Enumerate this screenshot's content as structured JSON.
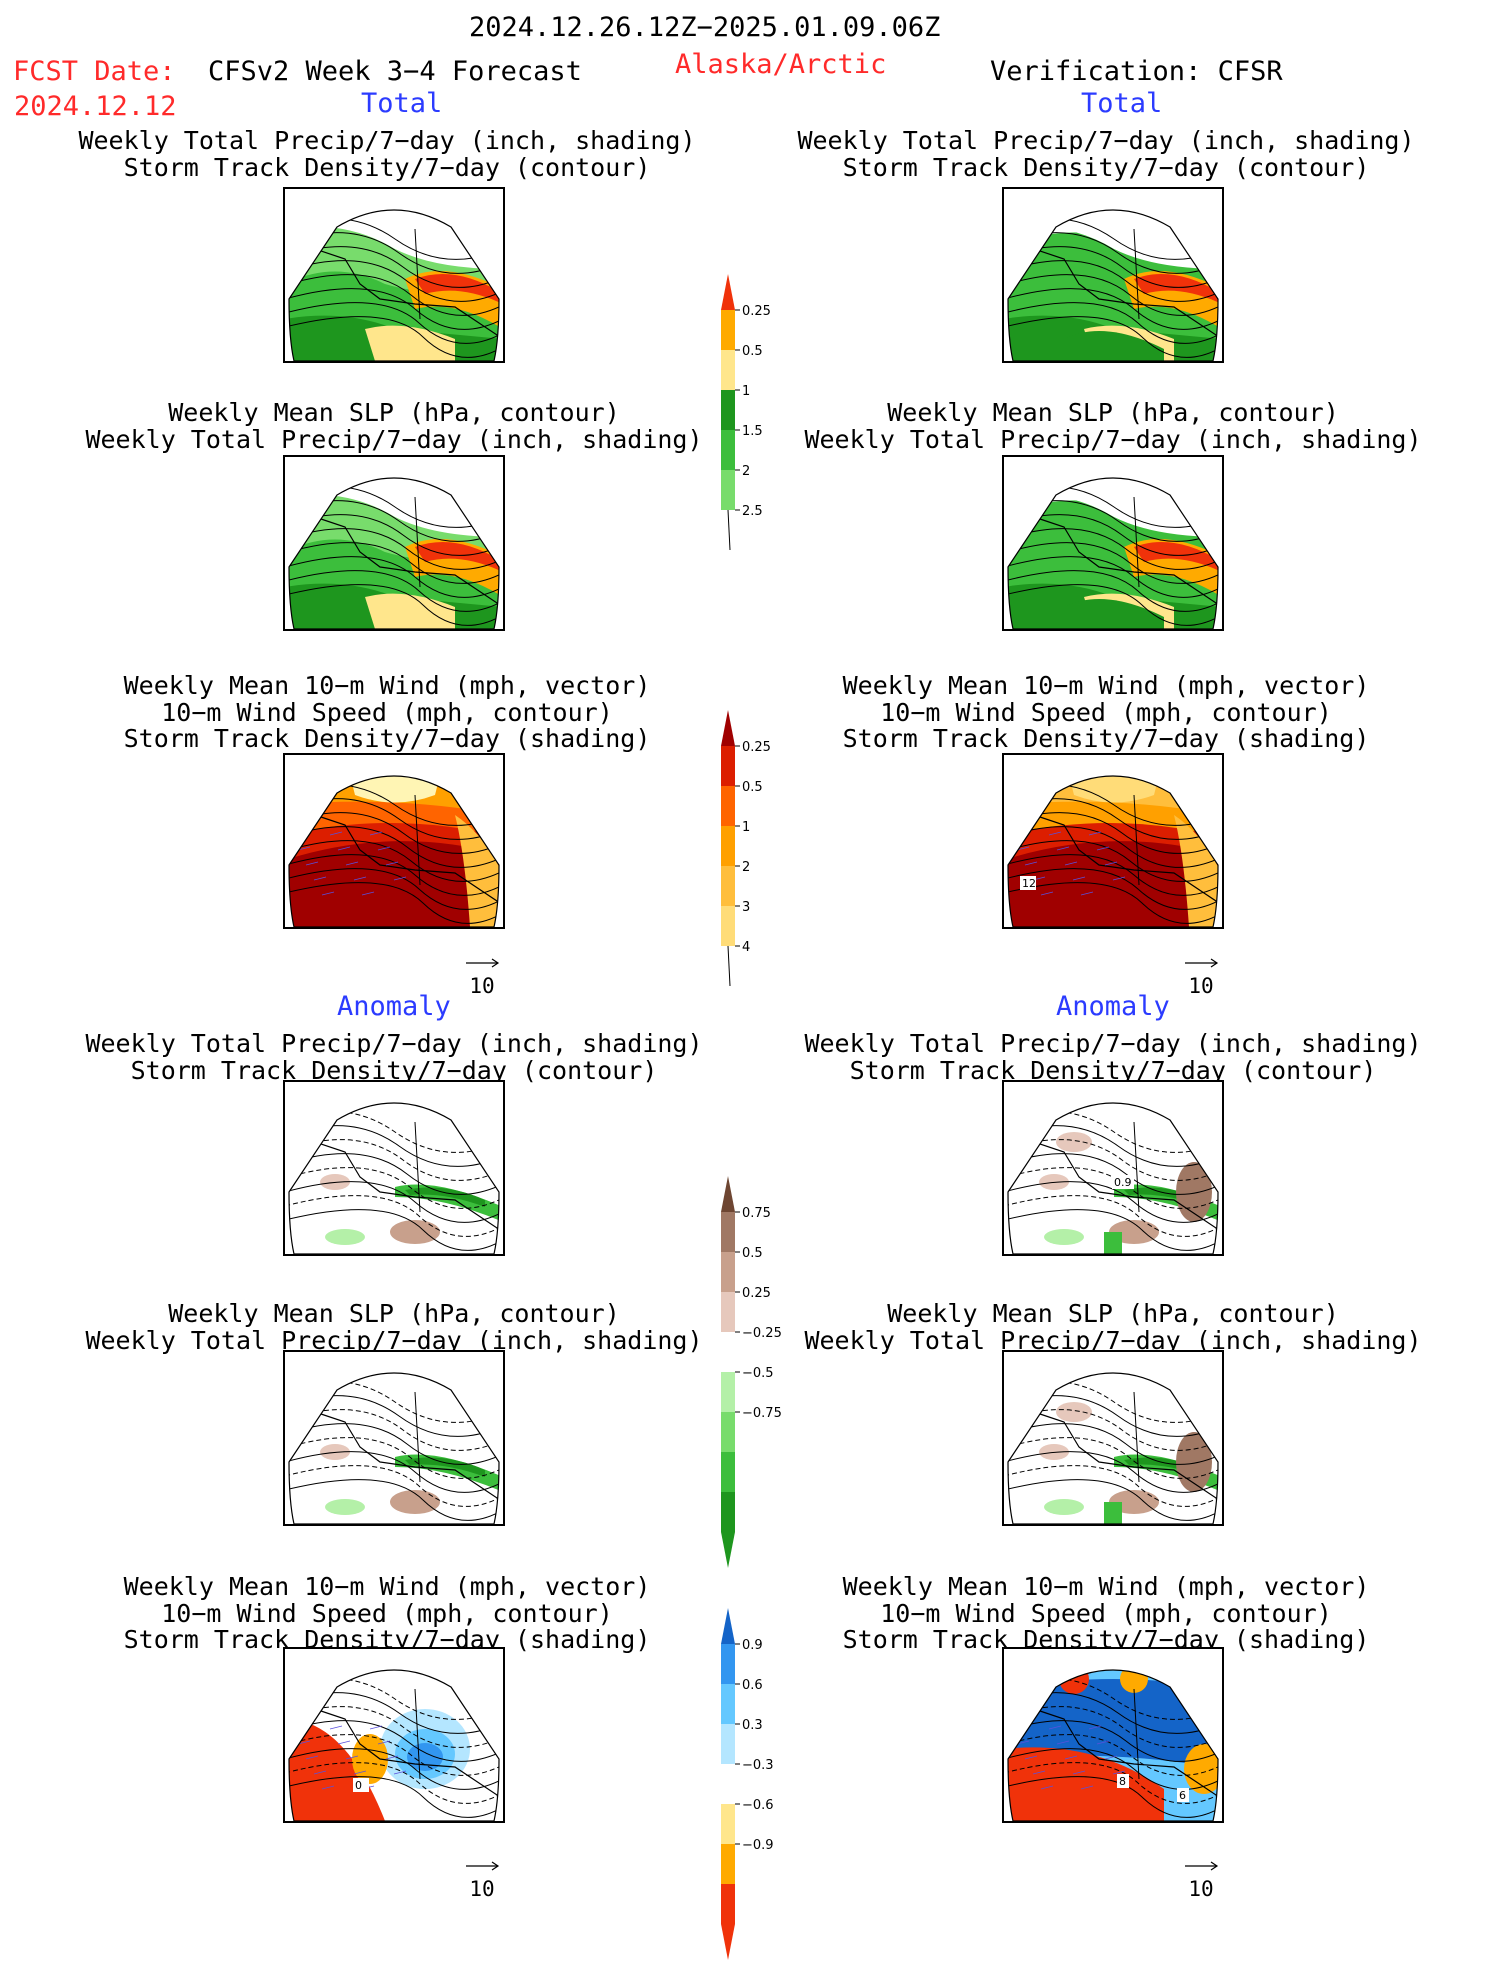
{
  "header": {
    "period": "2024.12.26.12Z−2025.01.09.06Z",
    "fcst_label": "FCST Date:",
    "fcst_date": "2024.12.12",
    "model": "CFSv2 Week 3−4 Forecast",
    "region": "Alaska/Arctic",
    "verification": "Verification: CFSR"
  },
  "columns": {
    "left": {
      "total": "Total",
      "anomaly": "Anomaly"
    },
    "right": {
      "total": "Total",
      "anomaly": "Anomaly"
    }
  },
  "titles": {
    "precip_std": [
      "Weekly Total Precip/7−day (inch, shading)",
      "Storm Track Density/7−day (contour)"
    ],
    "slp_precip": [
      "Weekly Mean SLP (hPa, contour)",
      "Weekly Total Precip/7−day (inch, shading)"
    ],
    "wind_std": [
      "Weekly Mean 10−m Wind (mph, vector)",
      "10−m Wind Speed (mph, contour)",
      "Storm Track Density/7−day (shading)"
    ]
  },
  "vector_ref": "10",
  "contour_labels": {
    "total_wind_right": "12",
    "anom_precip_right": "0.9",
    "anom_wind_left": "0",
    "anom_wind_right_a": "8",
    "anom_wind_right_b": "6"
  },
  "colorbars": [
    {
      "name": "total-precip",
      "levels": [
        "0.25",
        "0.5",
        "1",
        "1.5",
        "2",
        "2.5"
      ],
      "colors": [
        "#b4f0a8",
        "#78dc6c",
        "#3cbe3c",
        "#1e961e",
        "#ffe68c",
        "#ffaa00",
        "#f0320a"
      ]
    },
    {
      "name": "total-std",
      "levels": [
        "0.25",
        "0.5",
        "1",
        "2",
        "3",
        "4"
      ],
      "colors": [
        "#fff5b4",
        "#ffdc78",
        "#ffbe3c",
        "#ffa000",
        "#ff6400",
        "#dc1e00",
        "#a00000"
      ]
    },
    {
      "name": "anom-precip",
      "levels": [
        "0.75",
        "0.5",
        "0.25",
        "−0.25",
        "−0.5",
        "−0.75"
      ],
      "colors": [
        "#1e961e",
        "#3cbe3c",
        "#78dc6c",
        "#b4f0a8",
        "#ffffff",
        "#e6c8bc",
        "#c8a08c",
        "#a07864",
        "#6e4632"
      ]
    },
    {
      "name": "anom-std",
      "levels": [
        "0.9",
        "0.6",
        "0.3",
        "−0.3",
        "−0.6",
        "−0.9"
      ],
      "colors": [
        "#f0320a",
        "#ffaa00",
        "#ffe68c",
        "#ffffff",
        "#b4e6ff",
        "#64c8ff",
        "#3296f0",
        "#1464c8"
      ]
    }
  ],
  "chart_data": [
    {
      "type": "heatmap",
      "panel": "total-precip-storm-forecast",
      "variable": "Weekly Total Precip/7-day",
      "units": "inch",
      "contour": "Storm Track Density/7-day"
    },
    {
      "type": "heatmap",
      "panel": "total-precip-storm-verification",
      "variable": "Weekly Total Precip/7-day",
      "units": "inch",
      "contour": "Storm Track Density/7-day"
    },
    {
      "type": "heatmap",
      "panel": "total-slp-precip-forecast",
      "variable": "Weekly Total Precip/7-day",
      "units": "inch",
      "contour": "Weekly Mean SLP (hPa)"
    },
    {
      "type": "heatmap",
      "panel": "total-slp-precip-verification",
      "variable": "Weekly Total Precip/7-day",
      "units": "inch",
      "contour": "Weekly Mean SLP (hPa)"
    },
    {
      "type": "heatmap",
      "panel": "total-wind-std-forecast",
      "variable": "Storm Track Density/7-day",
      "contour": "10-m Wind Speed (mph)",
      "vector": "Weekly Mean 10-m Wind (mph)"
    },
    {
      "type": "heatmap",
      "panel": "total-wind-std-verification",
      "variable": "Storm Track Density/7-day",
      "contour": "10-m Wind Speed (mph)",
      "vector": "Weekly Mean 10-m Wind (mph)"
    },
    {
      "type": "heatmap",
      "panel": "anom-precip-storm-forecast",
      "variable": "Weekly Total Precip/7-day anomaly",
      "units": "inch"
    },
    {
      "type": "heatmap",
      "panel": "anom-precip-storm-verification",
      "variable": "Weekly Total Precip/7-day anomaly",
      "units": "inch"
    },
    {
      "type": "heatmap",
      "panel": "anom-slp-precip-forecast",
      "variable": "Weekly Total Precip/7-day anomaly",
      "units": "inch"
    },
    {
      "type": "heatmap",
      "panel": "anom-slp-precip-verification",
      "variable": "Weekly Total Precip/7-day anomaly",
      "units": "inch"
    },
    {
      "type": "heatmap",
      "panel": "anom-wind-std-forecast",
      "variable": "Storm Track Density/7-day anomaly"
    },
    {
      "type": "heatmap",
      "panel": "anom-wind-std-verification",
      "variable": "Storm Track Density/7-day anomaly"
    }
  ]
}
